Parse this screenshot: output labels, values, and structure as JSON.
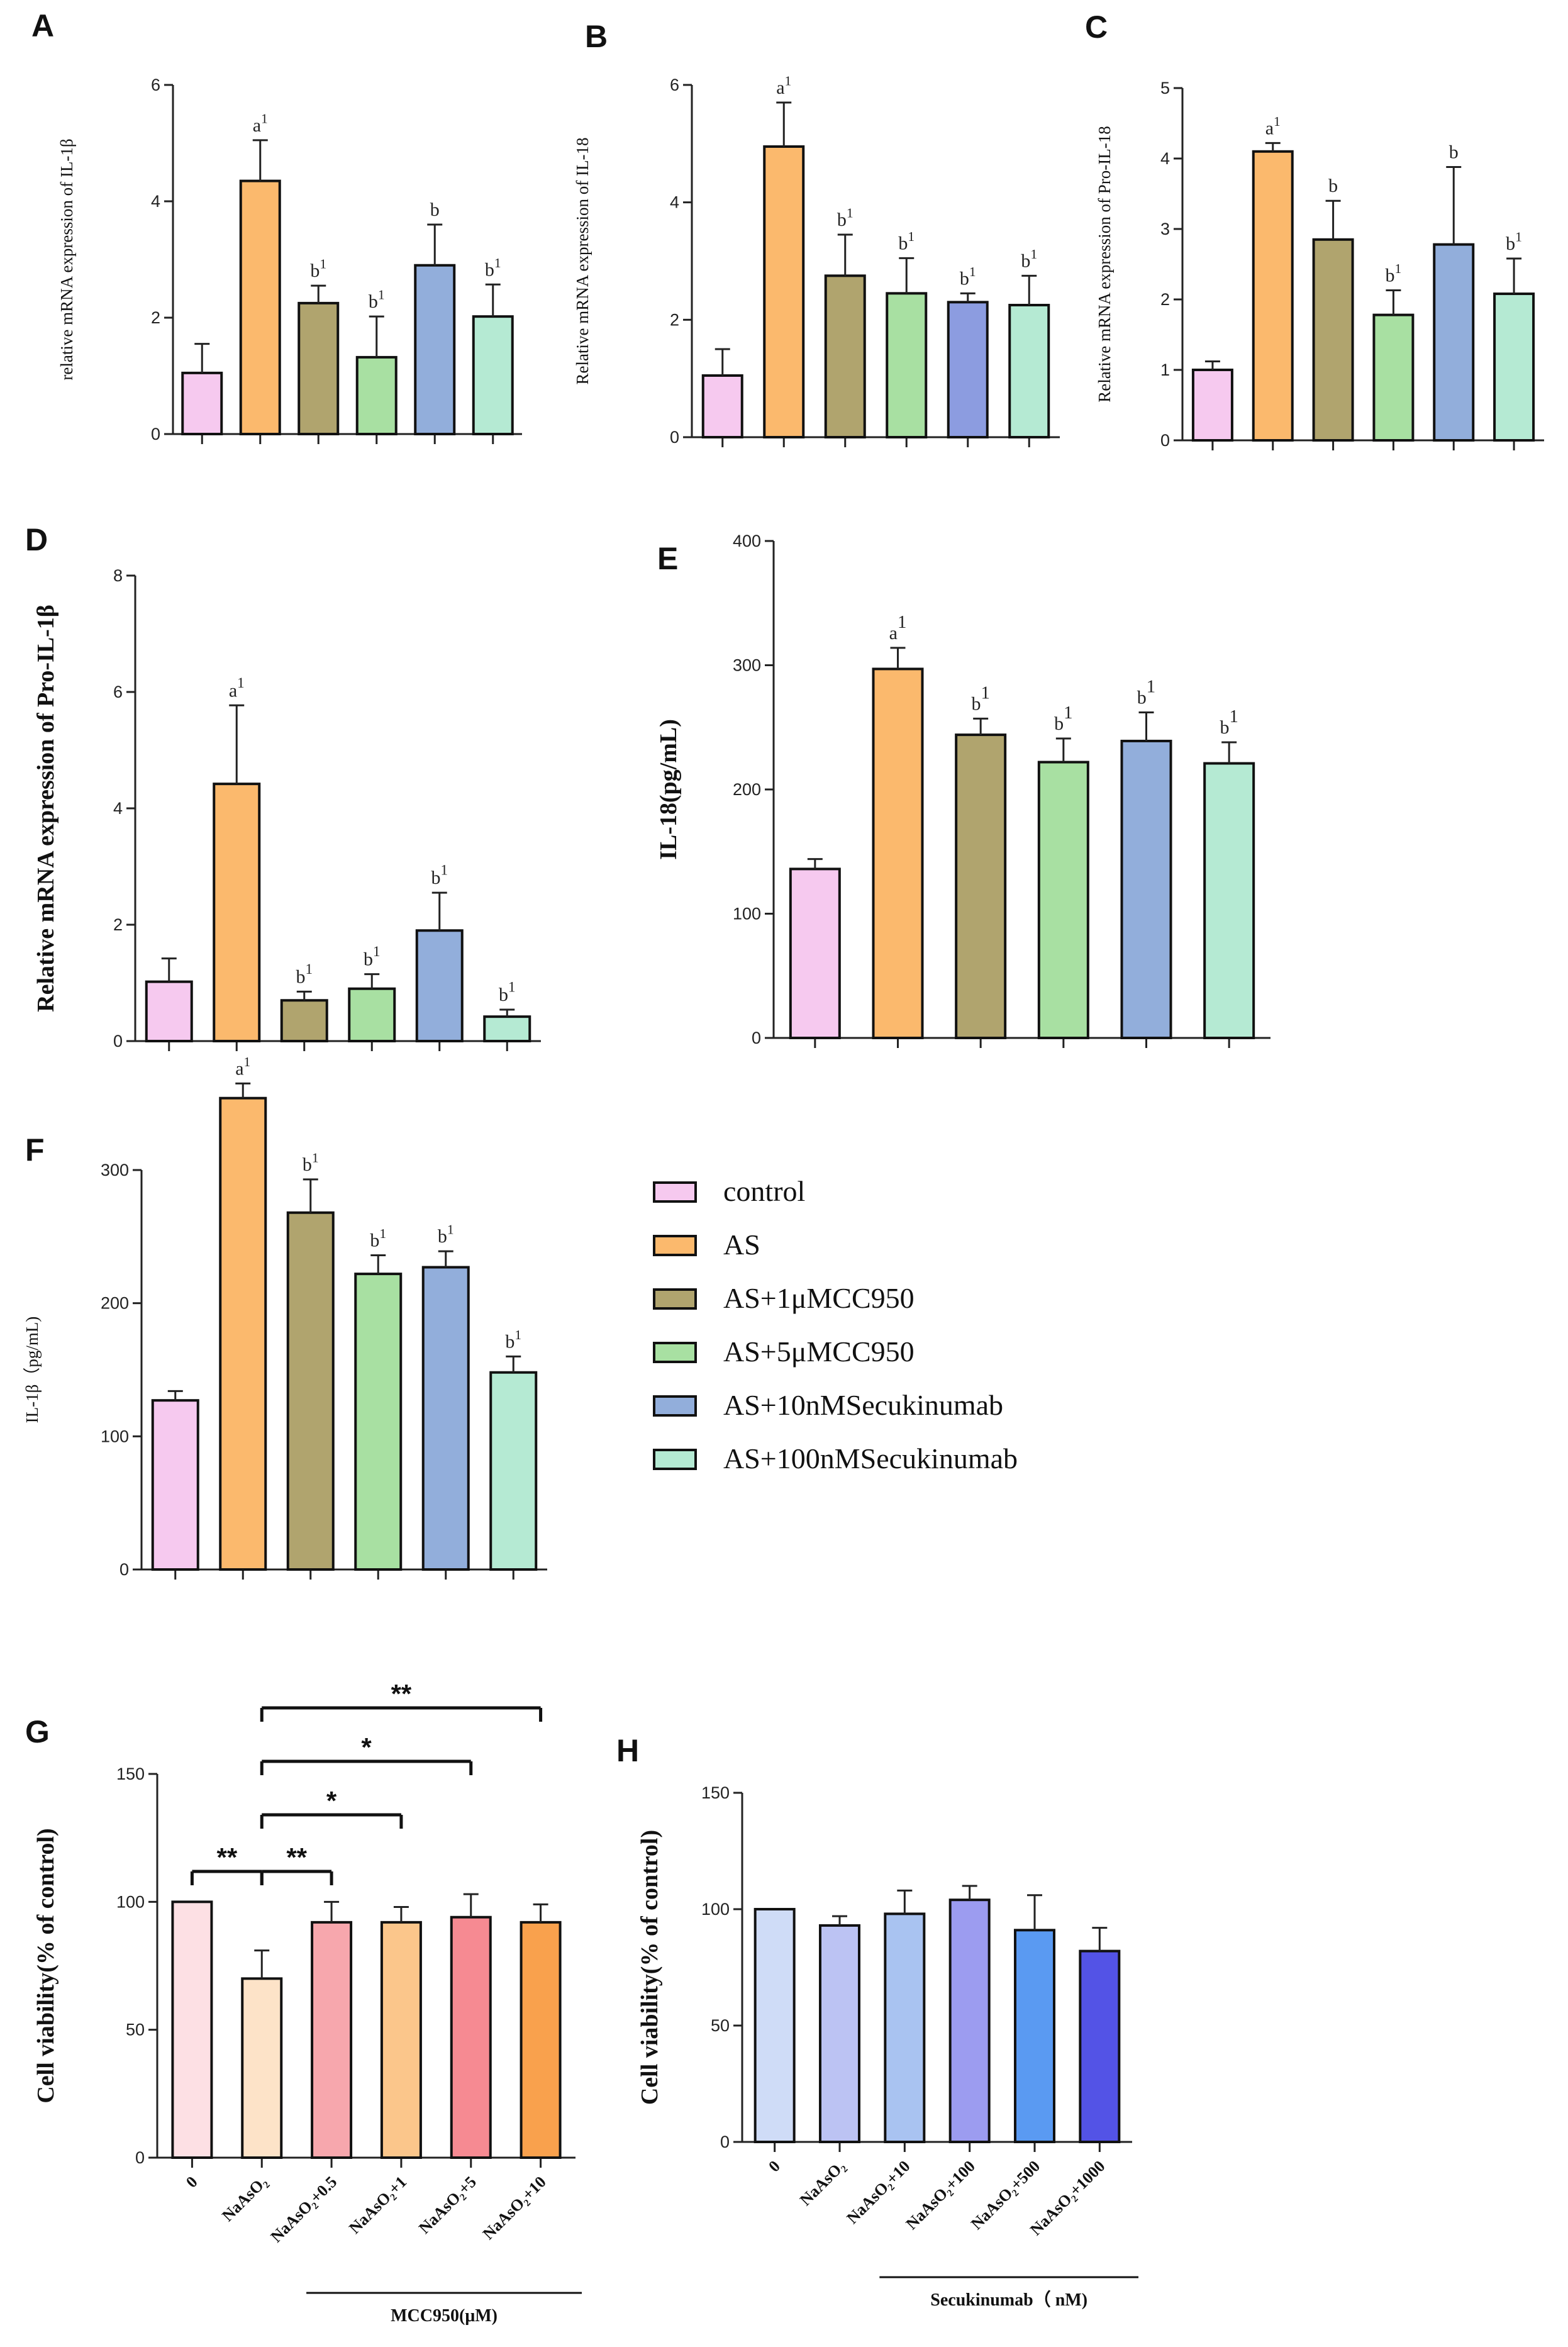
{
  "chart_data": [
    {
      "id": "A",
      "panel_label": "A",
      "type": "bar",
      "ylabel": "relative mRNA expression of IL-1β",
      "ylim": [
        0,
        6
      ],
      "yticks": [
        0,
        2,
        4,
        6
      ],
      "values": [
        1.05,
        4.35,
        2.25,
        1.32,
        2.9,
        2.02
      ],
      "errors": [
        0.5,
        0.7,
        0.3,
        0.7,
        0.7,
        0.55
      ],
      "sig": [
        "",
        "a1",
        "b1",
        "b1",
        "b",
        "b1"
      ],
      "colors": [
        "#f6c9ef",
        "#fbb96d",
        "#b0a46e",
        "#a8e0a2",
        "#92aedb",
        "#b5ead3"
      ]
    },
    {
      "id": "B",
      "panel_label": "B",
      "type": "bar",
      "ylabel": "Relative mRNA expression of IL-18",
      "ylim": [
        0,
        6
      ],
      "yticks": [
        0,
        2,
        4,
        6
      ],
      "values": [
        1.05,
        4.95,
        2.75,
        2.45,
        2.3,
        2.25
      ],
      "errors": [
        0.45,
        0.75,
        0.7,
        0.6,
        0.15,
        0.5
      ],
      "sig": [
        "",
        "a1",
        "b1",
        "b1",
        "b1",
        "b1"
      ],
      "colors": [
        "#f6c9ef",
        "#fbb96d",
        "#b0a46e",
        "#a8e0a2",
        "#8c9ce0",
        "#b5ead3"
      ]
    },
    {
      "id": "C",
      "panel_label": "C",
      "type": "bar",
      "ylabel": "Relative mRNA expression of Pro-IL-18",
      "ylim": [
        0,
        5
      ],
      "yticks": [
        0,
        1,
        2,
        3,
        4,
        5
      ],
      "values": [
        1.0,
        4.1,
        2.85,
        1.78,
        2.78,
        2.08
      ],
      "errors": [
        0.12,
        0.12,
        0.55,
        0.35,
        1.1,
        0.5
      ],
      "sig": [
        "",
        "a1",
        "b",
        "b1",
        "b",
        "b1"
      ],
      "colors": [
        "#f6c9ef",
        "#fbb96d",
        "#b0a46e",
        "#a8e0a2",
        "#92aedb",
        "#b5ead3"
      ]
    },
    {
      "id": "D",
      "panel_label": "D",
      "type": "bar",
      "ylabel": "Relative mRNA expression of Pro-IL-1β",
      "ylim": [
        0,
        8
      ],
      "yticks": [
        0,
        2,
        4,
        6,
        8
      ],
      "values": [
        1.02,
        4.42,
        0.7,
        0.9,
        1.9,
        0.42
      ],
      "errors": [
        0.4,
        1.35,
        0.15,
        0.25,
        0.65,
        0.12
      ],
      "sig": [
        "",
        "a1",
        "b1",
        "b1",
        "b1",
        "b1"
      ],
      "colors": [
        "#f6c9ef",
        "#fbb96d",
        "#b0a46e",
        "#a8e0a2",
        "#92aedb",
        "#b5ead3"
      ]
    },
    {
      "id": "E",
      "panel_label": "E",
      "type": "bar",
      "ylabel": "IL-18(pg/mL)",
      "ylim": [
        0,
        400
      ],
      "yticks": [
        0,
        100,
        200,
        300,
        400
      ],
      "values": [
        136,
        297,
        244,
        222,
        239,
        221
      ],
      "errors": [
        8,
        17,
        13,
        19,
        23,
        17
      ],
      "sig": [
        "",
        "a1",
        "b1",
        "b1",
        "b1",
        "b1"
      ],
      "colors": [
        "#f6c9ef",
        "#fbb96d",
        "#b0a46e",
        "#a8e0a2",
        "#92aedb",
        "#b5ead3"
      ]
    },
    {
      "id": "F",
      "panel_label": "F",
      "type": "bar",
      "ylabel": "IL-1β（pg/mL)",
      "ylim": [
        0,
        400
      ],
      "yticks": [
        0,
        100,
        200,
        300
      ],
      "values": [
        127,
        354,
        268,
        222,
        227,
        148
      ],
      "errors": [
        7,
        11,
        25,
        14,
        12,
        12
      ],
      "sig": [
        "",
        "a1",
        "b1",
        "b1",
        "b1",
        "b1"
      ],
      "colors": [
        "#f6c9ef",
        "#fbb96d",
        "#b0a46e",
        "#a8e0a2",
        "#92aedb",
        "#b5ead3"
      ]
    },
    {
      "id": "G",
      "panel_label": "G",
      "type": "bar",
      "ylabel": "Cell viability(% of control)",
      "ylim": [
        0,
        150
      ],
      "yticks": [
        0,
        50,
        100,
        150
      ],
      "categories": [
        "0",
        "NaAsO₂",
        "NaAsO₂+0.5",
        "NaAsO₂+1",
        "NaAsO₂+5",
        "NaAsO₂+10"
      ],
      "values": [
        100,
        70,
        92,
        92,
        94,
        92
      ],
      "errors": [
        0,
        11,
        8,
        6,
        9,
        7
      ],
      "group_label": "MCC950(μM)",
      "comparisons": [
        {
          "from": 1,
          "to": 5,
          "label": "**"
        },
        {
          "from": 1,
          "to": 4,
          "label": "*"
        },
        {
          "from": 1,
          "to": 3,
          "label": "*"
        },
        {
          "from": 1,
          "to": 2,
          "label": "**"
        },
        {
          "from": 0,
          "to": 1,
          "label": "**"
        }
      ],
      "colors": [
        "#fde0e4",
        "#fde3c8",
        "#f7a7ad",
        "#fbc68b",
        "#f68a92",
        "#f9a14d"
      ]
    },
    {
      "id": "H",
      "panel_label": "H",
      "type": "bar",
      "ylabel": "Cell viability(% of control)",
      "ylim": [
        0,
        150
      ],
      "yticks": [
        0,
        50,
        100,
        150
      ],
      "categories": [
        "0",
        "NaAsO₂",
        "NaAsO₂+10",
        "NaAsO₂+100",
        "NaAsO₂+500",
        "NaAsO₂+1000"
      ],
      "values": [
        100,
        93,
        98,
        104,
        91,
        82
      ],
      "errors": [
        0,
        4,
        10,
        6,
        15,
        10
      ],
      "group_label": "Secukinumab（ nM)",
      "colors": [
        "#cfdcf7",
        "#bcc3f3",
        "#a9c3f1",
        "#9c9cf0",
        "#5a9af2",
        "#5353e6"
      ]
    }
  ],
  "legend": {
    "items": [
      {
        "label": "control",
        "color": "#f6c9ef"
      },
      {
        "label": "AS",
        "color": "#fbb96d"
      },
      {
        "label": "AS+1μMCC950",
        "color": "#b0a46e"
      },
      {
        "label": "AS+5μMCC950",
        "color": "#a8e0a2"
      },
      {
        "label": "AS+10nMSecukinumab",
        "color": "#92aedb"
      },
      {
        "label": "AS+100nMSecukinumab",
        "color": "#b5ead3"
      }
    ]
  }
}
